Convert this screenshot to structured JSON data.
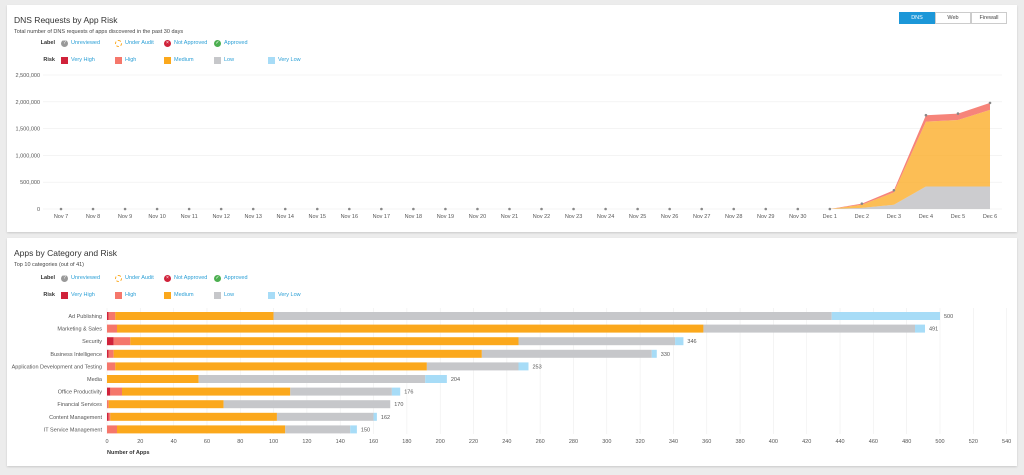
{
  "colors": {
    "very_high": "#d0223a",
    "high": "#f5776b",
    "medium": "#fba81c",
    "low": "#c6c7ca",
    "very_low": "#a7dcf7"
  },
  "legend": {
    "label_title": "Label",
    "risk_title": "Risk",
    "labels": [
      "Unreviewed",
      "Under Audit",
      "Not Approved",
      "Approved"
    ],
    "risks": [
      "Very High",
      "High",
      "Medium",
      "Low",
      "Very Low"
    ]
  },
  "panel1": {
    "title": "DNS Requests by App Risk",
    "subtitle": "Total number of DNS requests of apps discovered in the past 30 days",
    "tabs": [
      "DNS",
      "Web",
      "Firewall"
    ],
    "active_tab": "DNS"
  },
  "panel2": {
    "title": "Apps by Category and Risk",
    "subtitle": "Top 10 categories (out of 41)"
  },
  "chart_data": [
    {
      "type": "area",
      "title": "DNS Requests by App Risk",
      "ylim": [
        0,
        2500000
      ],
      "yticks": [
        "0",
        "500,000",
        "1,000,000",
        "1,500,000",
        "2,000,000",
        "2,500,000"
      ],
      "ytick_values": [
        0,
        500000,
        1000000,
        1500000,
        2000000,
        2500000
      ],
      "x": [
        "Nov 7",
        "Nov 8",
        "Nov 9",
        "Nov 10",
        "Nov 11",
        "Nov 12",
        "Nov 13",
        "Nov 14",
        "Nov 15",
        "Nov 16",
        "Nov 17",
        "Nov 18",
        "Nov 19",
        "Nov 20",
        "Nov 21",
        "Nov 22",
        "Nov 23",
        "Nov 24",
        "Nov 25",
        "Nov 26",
        "Nov 27",
        "Nov 28",
        "Nov 29",
        "Nov 30",
        "Dec 1",
        "Dec 2",
        "Dec 3",
        "Dec 4",
        "Dec 5",
        "Dec 6"
      ],
      "series": [
        {
          "name": "Low",
          "values": [
            0,
            0,
            0,
            0,
            0,
            0,
            0,
            0,
            0,
            0,
            0,
            0,
            0,
            0,
            0,
            0,
            0,
            0,
            0,
            0,
            0,
            0,
            0,
            0,
            0,
            20000,
            80000,
            420000,
            420000,
            420000
          ]
        },
        {
          "name": "Medium",
          "values": [
            0,
            0,
            0,
            0,
            0,
            0,
            0,
            0,
            0,
            0,
            0,
            0,
            0,
            0,
            0,
            0,
            0,
            0,
            0,
            0,
            0,
            0,
            0,
            0,
            0,
            60000,
            230000,
            1210000,
            1240000,
            1430000
          ]
        },
        {
          "name": "High",
          "values": [
            0,
            0,
            0,
            0,
            0,
            0,
            0,
            0,
            0,
            0,
            0,
            0,
            0,
            0,
            0,
            0,
            0,
            0,
            0,
            0,
            0,
            0,
            0,
            0,
            0,
            20000,
            40000,
            120000,
            120000,
            130000
          ]
        }
      ]
    },
    {
      "type": "bar",
      "orientation": "horizontal",
      "stacked": true,
      "xlabel": "Number of Apps",
      "xlim": [
        0,
        540
      ],
      "xticks": [
        0,
        20,
        40,
        60,
        80,
        100,
        120,
        140,
        160,
        180,
        200,
        220,
        240,
        260,
        280,
        300,
        320,
        340,
        360,
        380,
        400,
        420,
        440,
        460,
        480,
        500,
        520,
        540
      ],
      "categories": [
        "Ad Publishing",
        "Marketing & Sales",
        "Security",
        "Business Intelligence",
        "Application Development and Testing",
        "Media",
        "Office Productivity",
        "Financial Services",
        "Content Management",
        "IT Service Management"
      ],
      "totals": [
        "500",
        "491",
        "346",
        "330",
        "253",
        "204",
        "176",
        "170",
        "162",
        "150"
      ],
      "series": [
        {
          "name": "Very High",
          "values": [
            1,
            0,
            4,
            1,
            0,
            0,
            2,
            0,
            1,
            0
          ]
        },
        {
          "name": "High",
          "values": [
            4,
            6,
            10,
            3,
            5,
            0,
            7,
            1,
            1,
            6
          ]
        },
        {
          "name": "Medium",
          "values": [
            95,
            352,
            233,
            221,
            187,
            55,
            101,
            69,
            100,
            101
          ]
        },
        {
          "name": "Low",
          "values": [
            335,
            127,
            94,
            102,
            55,
            136,
            61,
            100,
            58,
            39
          ]
        },
        {
          "name": "Very Low",
          "values": [
            65,
            6,
            5,
            3,
            6,
            13,
            5,
            0,
            2,
            4
          ]
        }
      ]
    }
  ]
}
